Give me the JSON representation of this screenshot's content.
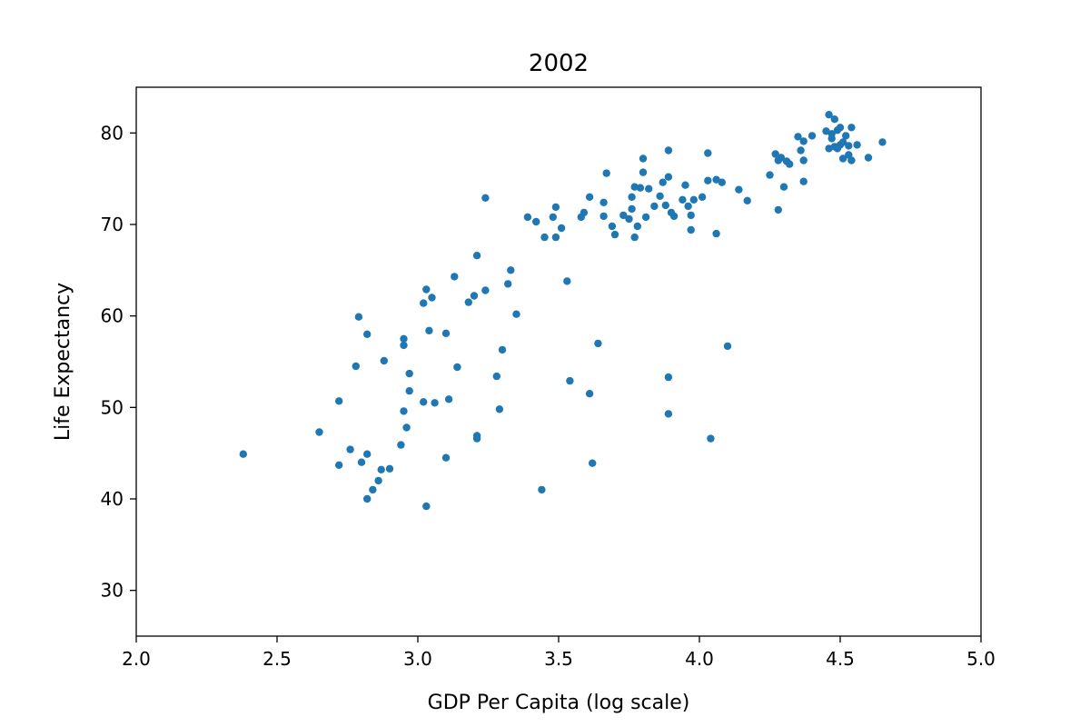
{
  "chart_data": {
    "type": "scatter",
    "title": "2002",
    "xlabel": "GDP Per Capita (log scale)",
    "ylabel": "Life Expectancy",
    "xlim": [
      2.0,
      5.0
    ],
    "ylim": [
      25,
      85
    ],
    "xticks": [
      2.0,
      2.5,
      3.0,
      3.5,
      4.0,
      4.5,
      5.0
    ],
    "xtick_labels": [
      "2.0",
      "2.5",
      "3.0",
      "3.5",
      "4.0",
      "4.5",
      "5.0"
    ],
    "yticks": [
      30,
      40,
      50,
      60,
      70,
      80
    ],
    "ytick_labels": [
      "30",
      "40",
      "50",
      "60",
      "70",
      "80"
    ],
    "grid": false,
    "marker_color": "#1f77b4",
    "points": [
      [
        2.38,
        44.9
      ],
      [
        2.65,
        47.3
      ],
      [
        2.72,
        50.7
      ],
      [
        2.72,
        43.7
      ],
      [
        2.76,
        45.4
      ],
      [
        2.78,
        54.5
      ],
      [
        2.79,
        59.9
      ],
      [
        2.8,
        44.0
      ],
      [
        2.82,
        58.0
      ],
      [
        2.82,
        44.9
      ],
      [
        2.82,
        40.0
      ],
      [
        2.84,
        41.0
      ],
      [
        2.86,
        42.0
      ],
      [
        2.87,
        43.2
      ],
      [
        2.88,
        55.1
      ],
      [
        2.9,
        43.3
      ],
      [
        2.94,
        45.9
      ],
      [
        2.95,
        57.5
      ],
      [
        2.95,
        56.8
      ],
      [
        2.95,
        49.6
      ],
      [
        2.96,
        47.8
      ],
      [
        2.97,
        53.7
      ],
      [
        2.97,
        51.8
      ],
      [
        3.02,
        61.4
      ],
      [
        3.02,
        50.6
      ],
      [
        3.03,
        62.9
      ],
      [
        3.03,
        39.2
      ],
      [
        3.04,
        58.4
      ],
      [
        3.05,
        62.0
      ],
      [
        3.06,
        50.5
      ],
      [
        3.1,
        58.1
      ],
      [
        3.1,
        44.5
      ],
      [
        3.11,
        50.9
      ],
      [
        3.13,
        64.3
      ],
      [
        3.14,
        54.4
      ],
      [
        3.18,
        61.5
      ],
      [
        3.2,
        62.2
      ],
      [
        3.21,
        66.6
      ],
      [
        3.21,
        46.9
      ],
      [
        3.21,
        46.6
      ],
      [
        3.24,
        62.8
      ],
      [
        3.24,
        72.9
      ],
      [
        3.28,
        53.4
      ],
      [
        3.29,
        49.8
      ],
      [
        3.3,
        56.3
      ],
      [
        3.32,
        63.5
      ],
      [
        3.33,
        65.0
      ],
      [
        3.35,
        60.2
      ],
      [
        3.39,
        70.8
      ],
      [
        3.42,
        70.3
      ],
      [
        3.44,
        41.0
      ],
      [
        3.45,
        68.6
      ],
      [
        3.48,
        70.8
      ],
      [
        3.49,
        68.6
      ],
      [
        3.49,
        71.9
      ],
      [
        3.51,
        69.6
      ],
      [
        3.53,
        63.8
      ],
      [
        3.54,
        52.9
      ],
      [
        3.58,
        70.8
      ],
      [
        3.59,
        71.3
      ],
      [
        3.61,
        73.0
      ],
      [
        3.61,
        51.5
      ],
      [
        3.62,
        43.9
      ],
      [
        3.64,
        57.0
      ],
      [
        3.66,
        72.4
      ],
      [
        3.66,
        70.9
      ],
      [
        3.67,
        75.6
      ],
      [
        3.69,
        69.8
      ],
      [
        3.7,
        68.9
      ],
      [
        3.73,
        71.0
      ],
      [
        3.75,
        70.6
      ],
      [
        3.76,
        73.0
      ],
      [
        3.76,
        71.7
      ],
      [
        3.77,
        74.1
      ],
      [
        3.77,
        68.6
      ],
      [
        3.78,
        69.8
      ],
      [
        3.79,
        74.0
      ],
      [
        3.8,
        75.7
      ],
      [
        3.8,
        77.2
      ],
      [
        3.81,
        70.8
      ],
      [
        3.82,
        73.9
      ],
      [
        3.84,
        72.0
      ],
      [
        3.86,
        73.1
      ],
      [
        3.87,
        74.6
      ],
      [
        3.88,
        72.1
      ],
      [
        3.89,
        75.2
      ],
      [
        3.89,
        78.1
      ],
      [
        3.89,
        53.3
      ],
      [
        3.89,
        49.3
      ],
      [
        3.9,
        71.3
      ],
      [
        3.91,
        70.9
      ],
      [
        3.94,
        72.7
      ],
      [
        3.95,
        74.3
      ],
      [
        3.96,
        72.0
      ],
      [
        3.97,
        69.4
      ],
      [
        3.97,
        71.0
      ],
      [
        3.98,
        72.7
      ],
      [
        4.01,
        73.0
      ],
      [
        4.03,
        77.8
      ],
      [
        4.03,
        74.8
      ],
      [
        4.04,
        46.6
      ],
      [
        4.06,
        69.0
      ],
      [
        4.06,
        74.9
      ],
      [
        4.08,
        74.6
      ],
      [
        4.1,
        56.7
      ],
      [
        4.14,
        73.8
      ],
      [
        4.17,
        72.6
      ],
      [
        4.25,
        75.4
      ],
      [
        4.27,
        77.7
      ],
      [
        4.28,
        71.6
      ],
      [
        4.28,
        77.0
      ],
      [
        4.29,
        77.3
      ],
      [
        4.3,
        74.1
      ],
      [
        4.31,
        76.9
      ],
      [
        4.32,
        76.6
      ],
      [
        4.35,
        79.6
      ],
      [
        4.36,
        78.1
      ],
      [
        4.37,
        79.1
      ],
      [
        4.37,
        77.0
      ],
      [
        4.37,
        74.7
      ],
      [
        4.4,
        79.7
      ],
      [
        4.45,
        80.2
      ],
      [
        4.46,
        82.0
      ],
      [
        4.46,
        78.3
      ],
      [
        4.47,
        79.4
      ],
      [
        4.47,
        79.9
      ],
      [
        4.48,
        78.5
      ],
      [
        4.48,
        81.5
      ],
      [
        4.49,
        78.3
      ],
      [
        4.49,
        80.3
      ],
      [
        4.5,
        80.6
      ],
      [
        4.5,
        78.7
      ],
      [
        4.51,
        77.2
      ],
      [
        4.51,
        79.0
      ],
      [
        4.52,
        79.7
      ],
      [
        4.53,
        77.6
      ],
      [
        4.53,
        78.6
      ],
      [
        4.54,
        80.6
      ],
      [
        4.54,
        77.0
      ],
      [
        4.56,
        78.7
      ],
      [
        4.6,
        77.3
      ],
      [
        4.65,
        79.0
      ]
    ]
  }
}
